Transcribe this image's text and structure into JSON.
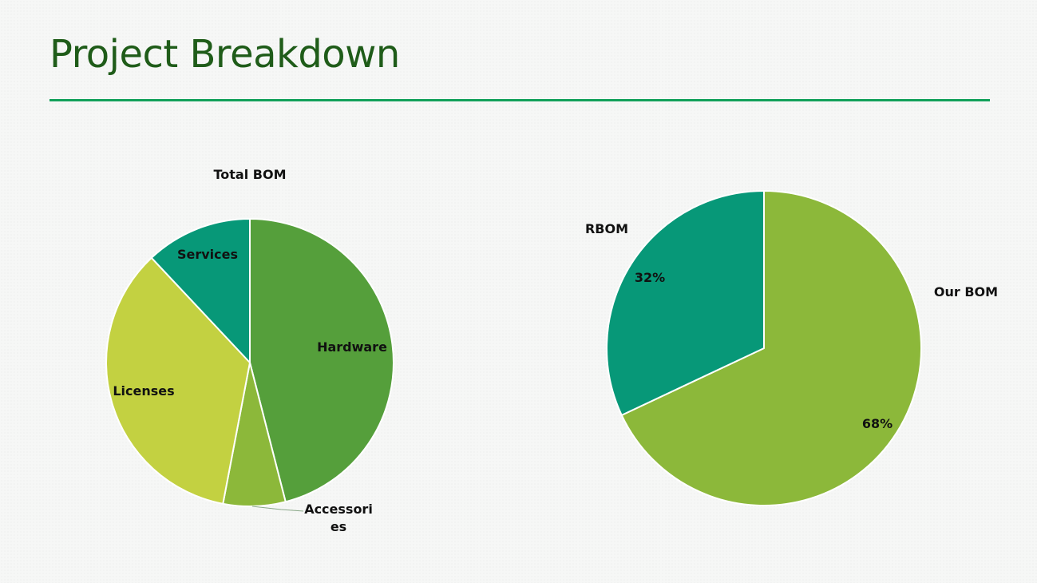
{
  "slide": {
    "title": "Project Breakdown",
    "accent_color": "#12a05a",
    "title_color": "#1f5c19"
  },
  "chart_data": [
    {
      "type": "pie",
      "title": "Total BOM",
      "start_angle_deg": 0,
      "direction": "clockwise",
      "slices": [
        {
          "label": "Hardware",
          "value": 46,
          "color": "#559f3b"
        },
        {
          "label": "Accessories",
          "value": 7,
          "color": "#8cb83a"
        },
        {
          "label": "Licenses",
          "value": 35,
          "color": "#c3d141"
        },
        {
          "label": "Services",
          "value": 12,
          "color": "#079878"
        }
      ]
    },
    {
      "type": "pie",
      "title": "",
      "start_angle_deg": 0,
      "direction": "clockwise",
      "slices": [
        {
          "label": "Our BOM",
          "value": 68,
          "display": "68%",
          "color": "#8cb83a"
        },
        {
          "label": "RBOM",
          "value": 32,
          "display": "32%",
          "color": "#079878"
        }
      ]
    }
  ]
}
